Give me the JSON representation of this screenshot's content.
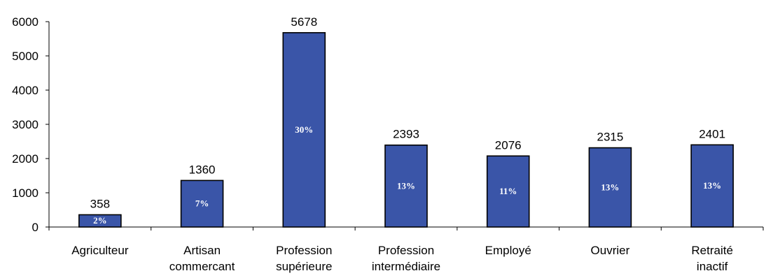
{
  "chart_data": {
    "type": "bar",
    "title": "",
    "xlabel": "",
    "ylabel": "",
    "categories": [
      [
        "Agriculteur"
      ],
      [
        "Artisan",
        "commercant"
      ],
      [
        "Profession",
        "supérieure"
      ],
      [
        "Profession",
        "intermédiaire"
      ],
      [
        "Employé"
      ],
      [
        "Ouvrier"
      ],
      [
        "Retraité",
        "inactif"
      ]
    ],
    "values": [
      358,
      1360,
      5678,
      2393,
      2076,
      2315,
      2401
    ],
    "percent_labels": [
      "2%",
      "7%",
      "30%",
      "13%",
      "11%",
      "13%",
      "13%"
    ],
    "ylim": [
      0,
      6000
    ],
    "yticks": [
      0,
      1000,
      2000,
      3000,
      4000,
      5000,
      6000
    ],
    "grid": false,
    "legend": "none",
    "bar_color": "#3a55a8"
  }
}
